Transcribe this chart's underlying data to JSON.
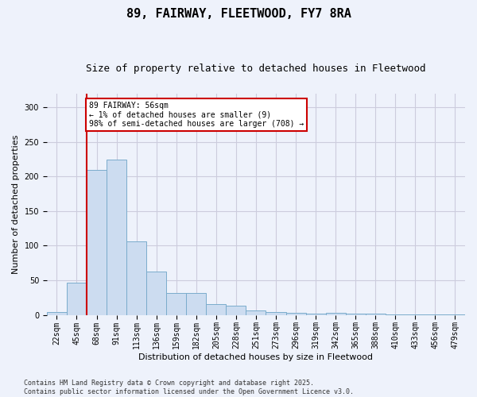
{
  "title": "89, FAIRWAY, FLEETWOOD, FY7 8RA",
  "subtitle": "Size of property relative to detached houses in Fleetwood",
  "xlabel": "Distribution of detached houses by size in Fleetwood",
  "ylabel": "Number of detached properties",
  "categories": [
    "22sqm",
    "45sqm",
    "68sqm",
    "91sqm",
    "113sqm",
    "136sqm",
    "159sqm",
    "182sqm",
    "205sqm",
    "228sqm",
    "251sqm",
    "273sqm",
    "296sqm",
    "319sqm",
    "342sqm",
    "365sqm",
    "388sqm",
    "410sqm",
    "433sqm",
    "456sqm",
    "479sqm"
  ],
  "values": [
    4,
    47,
    210,
    225,
    106,
    63,
    32,
    32,
    15,
    13,
    6,
    4,
    3,
    2,
    3,
    2,
    2,
    1,
    1,
    1,
    1
  ],
  "bar_color": "#ccdcf0",
  "bar_edge_color": "#7aaccc",
  "vline_color": "#cc0000",
  "annotation_text": "89 FAIRWAY: 56sqm\n← 1% of detached houses are smaller (9)\n98% of semi-detached houses are larger (708) →",
  "annotation_box_color": "#ffffff",
  "annotation_box_edge_color": "#cc0000",
  "ylim": [
    0,
    320
  ],
  "yticks": [
    0,
    50,
    100,
    150,
    200,
    250,
    300
  ],
  "grid_color": "#ccccdd",
  "background_color": "#eef2fb",
  "footer_text": "Contains HM Land Registry data © Crown copyright and database right 2025.\nContains public sector information licensed under the Open Government Licence v3.0.",
  "title_fontsize": 11,
  "subtitle_fontsize": 9,
  "tick_fontsize": 7,
  "label_fontsize": 8,
  "annotation_fontsize": 7,
  "footer_fontsize": 6
}
